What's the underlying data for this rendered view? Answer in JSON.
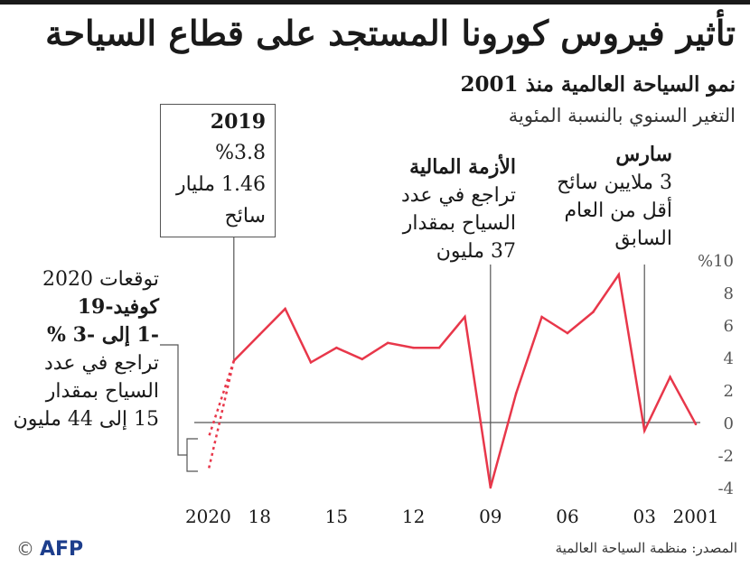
{
  "title": "تأثير فيروس كورونا المستجد على قطاع السياحة",
  "subtitle": "نمو السياحة العالمية منذ 2001",
  "unit_note": "التغير السنوي بالنسبة المئوية",
  "box_2019": {
    "year": "2019",
    "pct": "%3.8",
    "count": "1.46 مليار",
    "unit": "سائح"
  },
  "annotations": {
    "sars": {
      "title": "سارس",
      "l1": "3 ملايين سائح",
      "l2": "أقل من العام",
      "l3": "السابق"
    },
    "crisis": {
      "title": "الأزمة المالية",
      "l1": "تراجع في عدد",
      "l2": "السياح بمقدار",
      "l3": "37 مليون"
    },
    "forecast": {
      "l1": "توقعات 2020",
      "l2": "كوفيد-19",
      "l3": "-1 إلى -3 %",
      "l4": "تراجع في عدد",
      "l5": "السياح بمقدار",
      "l6": "15 إلى 44 مليون"
    }
  },
  "footer": {
    "source": "المصدر: منظمة السياحة العالمية",
    "credit": "AFP",
    "copyright": "©"
  },
  "colors": {
    "line": "#e8374a",
    "axis": "#555555",
    "text": "#1a1a1a"
  },
  "chart_data": {
    "type": "line",
    "title": "نمو السياحة العالمية منذ 2001",
    "ylabel": "التغير السنوي بالنسبة المئوية",
    "x_direction": "right-to-left",
    "ylim": [
      -4,
      10
    ],
    "y_ticks": [
      {
        "value": 10,
        "label": "%10"
      },
      {
        "value": 8,
        "label": "8"
      },
      {
        "value": 6,
        "label": "6"
      },
      {
        "value": 4,
        "label": "4"
      },
      {
        "value": 2,
        "label": "2"
      },
      {
        "value": 0,
        "label": "0"
      },
      {
        "value": -2,
        "label": "-2"
      },
      {
        "value": -4,
        "label": "-4"
      }
    ],
    "x_ticks": [
      {
        "year": 2001,
        "label": "2001"
      },
      {
        "year": 2003,
        "label": "03"
      },
      {
        "year": 2006,
        "label": "06"
      },
      {
        "year": 2009,
        "label": "09"
      },
      {
        "year": 2012,
        "label": "12"
      },
      {
        "year": 2015,
        "label": "15"
      },
      {
        "year": 2018,
        "label": "18"
      },
      {
        "year": 2020,
        "label": "2020"
      }
    ],
    "series": [
      {
        "name": "actual",
        "style": "solid",
        "x": [
          2001,
          2002,
          2003,
          2004,
          2005,
          2006,
          2007,
          2008,
          2009,
          2010,
          2011,
          2012,
          2013,
          2014,
          2015,
          2016,
          2017,
          2018,
          2019
        ],
        "values": [
          -0.1,
          2.8,
          -0.5,
          9.1,
          6.8,
          5.5,
          6.5,
          1.8,
          -4.0,
          6.5,
          4.6,
          4.6,
          4.9,
          3.9,
          4.6,
          3.7,
          7.0,
          5.4,
          3.8
        ]
      },
      {
        "name": "forecast 2020",
        "style": "dotted",
        "x": [
          2019,
          2020
        ],
        "range_low": [
          3.8,
          -3
        ],
        "range_high": [
          3.8,
          -1
        ]
      }
    ],
    "markers": [
      {
        "year": 2003,
        "label": "سارس"
      },
      {
        "year": 2009,
        "label": "الأزمة المالية"
      },
      {
        "year": 2019,
        "label": "2019"
      }
    ]
  }
}
